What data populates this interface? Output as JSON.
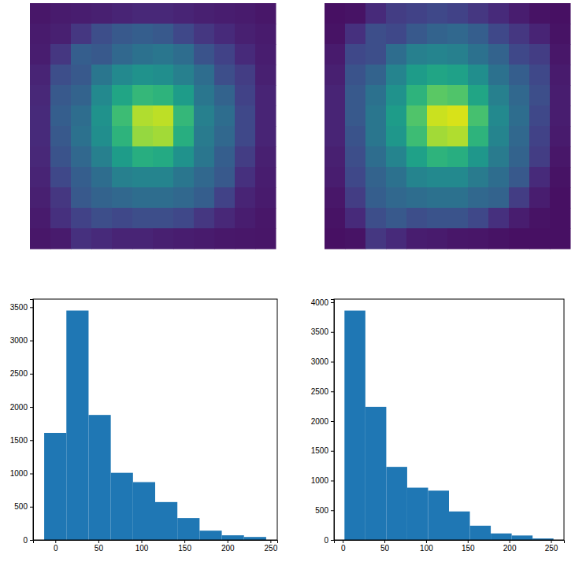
{
  "chart_data": [
    {
      "type": "image",
      "tick_labels": false,
      "zlim": [
        0,
        255
      ],
      "cells": [
        [
          15,
          18,
          20,
          22,
          25,
          28,
          28,
          25,
          22,
          20,
          18,
          15
        ],
        [
          18,
          22,
          40,
          60,
          70,
          75,
          70,
          55,
          40,
          30,
          22,
          18
        ],
        [
          20,
          40,
          75,
          70,
          85,
          95,
          100,
          90,
          65,
          50,
          30,
          20
        ],
        [
          25,
          60,
          70,
          100,
          120,
          130,
          125,
          110,
          90,
          60,
          45,
          22
        ],
        [
          28,
          70,
          80,
          120,
          150,
          170,
          165,
          140,
          100,
          80,
          50,
          25
        ],
        [
          30,
          75,
          90,
          130,
          175,
          225,
          230,
          170,
          110,
          90,
          55,
          25
        ],
        [
          30,
          70,
          95,
          125,
          165,
          215,
          220,
          160,
          105,
          85,
          55,
          25
        ],
        [
          28,
          65,
          85,
          110,
          140,
          160,
          155,
          130,
          100,
          75,
          45,
          22
        ],
        [
          25,
          55,
          75,
          90,
          110,
          115,
          115,
          100,
          85,
          70,
          35,
          20
        ],
        [
          22,
          40,
          70,
          80,
          85,
          90,
          90,
          85,
          75,
          50,
          25,
          18
        ],
        [
          18,
          35,
          50,
          60,
          55,
          60,
          60,
          55,
          40,
          28,
          20,
          15
        ],
        [
          15,
          18,
          35,
          30,
          25,
          25,
          22,
          20,
          18,
          16,
          15,
          14
        ]
      ]
    },
    {
      "type": "image",
      "tick_labels": false,
      "zlim": [
        0,
        255
      ],
      "cells": [
        [
          10,
          12,
          30,
          45,
          50,
          55,
          50,
          40,
          30,
          20,
          12,
          10
        ],
        [
          12,
          35,
          60,
          55,
          70,
          80,
          85,
          75,
          55,
          40,
          25,
          12
        ],
        [
          18,
          55,
          60,
          90,
          110,
          115,
          110,
          95,
          80,
          55,
          45,
          15
        ],
        [
          22,
          65,
          80,
          115,
          140,
          150,
          145,
          125,
          95,
          75,
          55,
          18
        ],
        [
          25,
          70,
          95,
          130,
          165,
          190,
          185,
          150,
          110,
          85,
          60,
          20
        ],
        [
          25,
          70,
          100,
          140,
          185,
          235,
          240,
          180,
          120,
          90,
          55,
          20
        ],
        [
          25,
          65,
          100,
          135,
          175,
          220,
          225,
          165,
          115,
          85,
          50,
          18
        ],
        [
          22,
          60,
          90,
          115,
          145,
          165,
          160,
          135,
          105,
          80,
          45,
          15
        ],
        [
          20,
          55,
          80,
          95,
          115,
          120,
          120,
          105,
          90,
          70,
          30,
          12
        ],
        [
          15,
          45,
          75,
          85,
          90,
          95,
          95,
          85,
          80,
          45,
          20,
          10
        ],
        [
          12,
          30,
          60,
          70,
          60,
          65,
          65,
          55,
          35,
          20,
          12,
          10
        ],
        [
          10,
          12,
          40,
          30,
          20,
          18,
          15,
          14,
          12,
          10,
          10,
          10
        ]
      ]
    },
    {
      "type": "histogram",
      "color": "#1f77b4",
      "bins": [
        -13,
        12.8,
        38.6,
        64.4,
        90.2,
        116,
        141.8,
        167.6,
        193.4,
        219.2,
        245
      ],
      "values": [
        1610,
        3450,
        1880,
        1010,
        870,
        570,
        330,
        140,
        70,
        45
      ],
      "xlim": [
        -25.9,
        257.9
      ],
      "xticks": [
        0,
        50,
        100,
        150,
        200,
        250
      ],
      "ylim": [
        0,
        3622
      ],
      "yticks": [
        0,
        500,
        1000,
        1500,
        2000,
        2500,
        3000,
        3500
      ]
    },
    {
      "type": "histogram",
      "color": "#1f77b4",
      "bins": [
        2,
        27.1,
        52.2,
        77.3,
        102.4,
        127.5,
        152.6,
        177.7,
        202.8,
        227.9,
        253
      ],
      "values": [
        3860,
        2240,
        1230,
        880,
        830,
        480,
        240,
        110,
        75,
        25
      ],
      "xlim": [
        -10.6,
        265.6
      ],
      "xticks": [
        0,
        50,
        100,
        150,
        200,
        250
      ],
      "ylim": [
        0,
        4053
      ],
      "yticks": [
        0,
        500,
        1000,
        1500,
        2000,
        2500,
        3000,
        3500,
        4000
      ]
    }
  ]
}
